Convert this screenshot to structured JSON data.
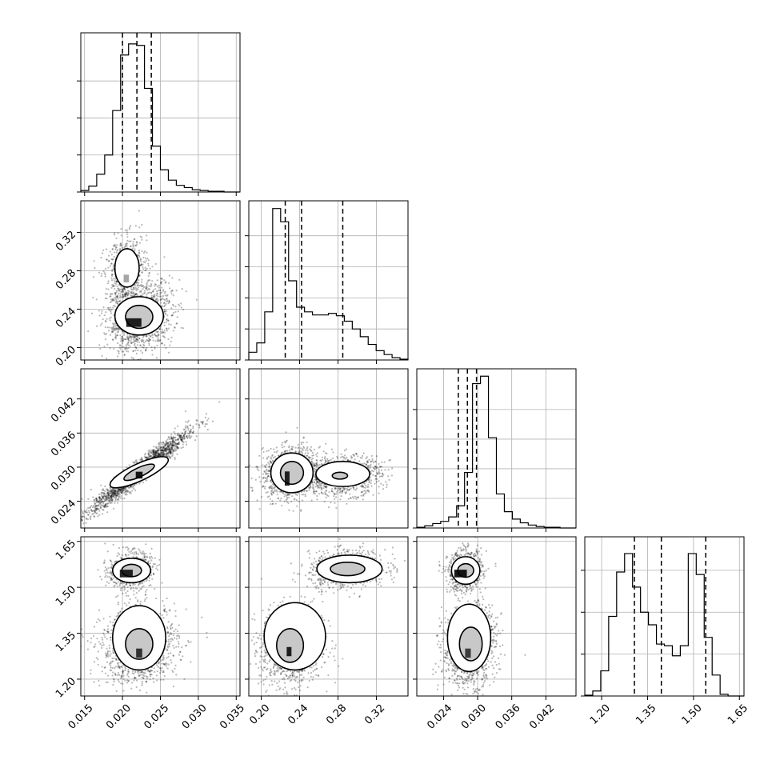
{
  "chart_data": {
    "type": "corner",
    "parameters": [
      {
        "ticks": [
          0.015,
          0.02,
          0.025,
          0.03,
          0.035
        ],
        "tick_labels": [
          "0.015",
          "0.020",
          "0.025",
          "0.030",
          "0.035"
        ],
        "range": [
          0.0145,
          0.0355
        ],
        "quantiles": [
          0.02,
          0.0219,
          0.0238
        ]
      },
      {
        "ticks": [
          0.2,
          0.24,
          0.28,
          0.32
        ],
        "tick_labels": [
          "0.20",
          "0.24",
          "0.28",
          "0.32"
        ],
        "range": [
          0.187,
          0.353
        ],
        "quantiles": [
          0.225,
          0.242,
          0.285
        ]
      },
      {
        "ticks": [
          0.024,
          0.03,
          0.036,
          0.042
        ],
        "tick_labels": [
          "0.024",
          "0.030",
          "0.036",
          "0.042"
        ],
        "range": [
          0.0193,
          0.0473
        ],
        "quantiles": [
          0.0266,
          0.0282,
          0.0298
        ]
      },
      {
        "ticks": [
          1.2,
          1.35,
          1.5,
          1.65
        ],
        "tick_labels": [
          "1.20",
          "1.35",
          "1.50",
          "1.65"
        ],
        "range": [
          1.145,
          1.665
        ],
        "quantiles": [
          1.307,
          1.395,
          1.54
        ]
      }
    ],
    "histograms": [
      {
        "values": [
          2,
          8,
          24,
          50,
          110,
          185,
          200,
          198,
          140,
          62,
          30,
          16,
          9,
          6,
          3,
          2,
          1,
          1,
          0,
          0
        ],
        "ymax": 215,
        "yticks": [
          0,
          50,
          100,
          150
        ]
      },
      {
        "values": [
          10,
          22,
          62,
          195,
          178,
          102,
          68,
          62,
          58,
          58,
          60,
          57,
          50,
          40,
          30,
          20,
          12,
          7,
          3,
          1
        ],
        "ymax": 205,
        "yticks": [
          0,
          40,
          80,
          120,
          160
        ]
      },
      {
        "values": [
          1,
          3,
          6,
          9,
          15,
          30,
          75,
          195,
          205,
          122,
          46,
          22,
          12,
          7,
          4,
          2,
          1,
          1,
          0,
          0
        ],
        "ymax": 215,
        "yticks": [
          0,
          40,
          80,
          120,
          160
        ]
      },
      {
        "values": [
          1,
          6,
          30,
          95,
          148,
          170,
          130,
          100,
          85,
          62,
          60,
          48,
          60,
          170,
          145,
          70,
          25,
          2,
          0,
          0
        ],
        "ymax": 190,
        "yticks": [
          0,
          50,
          100,
          150
        ]
      }
    ],
    "pairs": [
      {
        "x": 0,
        "y": 1,
        "clusters": [
          {
            "cx": 0.0223,
            "cy": 0.231,
            "sx": 0.0021,
            "sy": 0.018,
            "rho": 0.2,
            "n": 1300
          },
          {
            "cx": 0.0205,
            "cy": 0.28,
            "sx": 0.0014,
            "sy": 0.018,
            "rho": 0.2,
            "n": 600
          }
        ],
        "contours": [
          {
            "cx": 0.0222,
            "cy": 0.232,
            "rx": 0.0018,
            "ry": 0.012,
            "rot": 0,
            "style": "grey"
          },
          {
            "cx": 0.0222,
            "cy": 0.233,
            "rx": 0.0032,
            "ry": 0.02,
            "rot": 0,
            "style": "line"
          },
          {
            "cx": 0.0206,
            "cy": 0.283,
            "rx": 0.0016,
            "ry": 0.02,
            "rot": 0,
            "style": "line"
          }
        ],
        "blobs": [
          {
            "x": 0.0205,
            "y": 0.272,
            "w": 0.0007,
            "h": 0.008,
            "o": 0.35
          },
          {
            "x": 0.0215,
            "y": 0.226,
            "w": 0.002,
            "h": 0.009,
            "o": 0.85
          }
        ]
      },
      {
        "x": 0,
        "y": 2,
        "clusters": [
          {
            "cx": 0.0222,
            "cy": 0.0292,
            "sx": 0.0032,
            "sy": 0.0035,
            "rho": 0.96,
            "n": 2000
          }
        ],
        "contours": [
          {
            "cx": 0.0222,
            "cy": 0.0291,
            "rx": 0.0042,
            "ry": 0.0015,
            "rot": 25,
            "style": "line"
          },
          {
            "cx": 0.0222,
            "cy": 0.0291,
            "rx": 0.0022,
            "ry": 0.0008,
            "rot": 25,
            "style": "grey"
          }
        ],
        "blobs": [
          {
            "x": 0.0222,
            "y": 0.0286,
            "w": 0.0009,
            "h": 0.0012,
            "o": 0.9
          }
        ]
      },
      {
        "x": 1,
        "y": 2,
        "clusters": [
          {
            "cx": 0.232,
            "cy": 0.029,
            "sx": 0.015,
            "sy": 0.0022,
            "rho": 0.1,
            "n": 1200
          },
          {
            "cx": 0.285,
            "cy": 0.0285,
            "sx": 0.02,
            "sy": 0.0017,
            "rho": 0.1,
            "n": 900
          }
        ],
        "contours": [
          {
            "cx": 0.232,
            "cy": 0.029,
            "rx": 0.022,
            "ry": 0.0035,
            "rot": 0,
            "style": "line"
          },
          {
            "cx": 0.285,
            "cy": 0.0288,
            "rx": 0.028,
            "ry": 0.0022,
            "rot": 0,
            "style": "line"
          },
          {
            "cx": 0.232,
            "cy": 0.029,
            "rx": 0.012,
            "ry": 0.002,
            "rot": 0,
            "style": "grey"
          },
          {
            "cx": 0.282,
            "cy": 0.0285,
            "rx": 0.008,
            "ry": 0.0006,
            "rot": 0,
            "style": "grey"
          }
        ],
        "blobs": [
          {
            "x": 0.227,
            "y": 0.028,
            "w": 0.005,
            "h": 0.0025,
            "o": 0.85
          }
        ]
      },
      {
        "x": 0,
        "y": 3,
        "clusters": [
          {
            "cx": 0.0222,
            "cy": 1.31,
            "sx": 0.0025,
            "sy": 0.06,
            "rho": 0.1,
            "n": 1300
          },
          {
            "cx": 0.021,
            "cy": 1.555,
            "sx": 0.0014,
            "sy": 0.03,
            "rho": 0.1,
            "n": 700
          }
        ],
        "contours": [
          {
            "cx": 0.0222,
            "cy": 1.335,
            "rx": 0.0035,
            "ry": 0.105,
            "rot": 0,
            "style": "line"
          },
          {
            "cx": 0.0222,
            "cy": 1.315,
            "rx": 0.0018,
            "ry": 0.05,
            "rot": 0,
            "style": "grey"
          },
          {
            "cx": 0.0212,
            "cy": 1.555,
            "rx": 0.0025,
            "ry": 0.04,
            "rot": 0,
            "style": "line"
          },
          {
            "cx": 0.0212,
            "cy": 1.555,
            "rx": 0.0013,
            "ry": 0.02,
            "rot": 0,
            "style": "grey"
          }
        ],
        "blobs": [
          {
            "x": 0.0205,
            "y": 1.545,
            "w": 0.0017,
            "h": 0.025,
            "o": 0.85
          },
          {
            "x": 0.0222,
            "y": 1.285,
            "w": 0.0008,
            "h": 0.03,
            "o": 0.75
          }
        ]
      },
      {
        "x": 1,
        "y": 3,
        "clusters": [
          {
            "cx": 0.232,
            "cy": 1.31,
            "sx": 0.016,
            "sy": 0.065,
            "rho": 0.1,
            "n": 1300
          },
          {
            "cx": 0.29,
            "cy": 1.56,
            "sx": 0.02,
            "sy": 0.03,
            "rho": 0.1,
            "n": 800
          }
        ],
        "contours": [
          {
            "cx": 0.235,
            "cy": 1.34,
            "rx": 0.032,
            "ry": 0.11,
            "rot": 0,
            "style": "line"
          },
          {
            "cx": 0.23,
            "cy": 1.31,
            "rx": 0.014,
            "ry": 0.055,
            "rot": 0,
            "style": "grey"
          },
          {
            "cx": 0.292,
            "cy": 1.56,
            "rx": 0.034,
            "ry": 0.045,
            "rot": 0,
            "style": "line"
          },
          {
            "cx": 0.29,
            "cy": 1.56,
            "rx": 0.018,
            "ry": 0.022,
            "rot": 0,
            "style": "grey"
          }
        ],
        "blobs": [
          {
            "x": 0.229,
            "y": 1.29,
            "w": 0.005,
            "h": 0.03,
            "o": 0.85
          }
        ]
      },
      {
        "x": 2,
        "y": 3,
        "clusters": [
          {
            "cx": 0.0285,
            "cy": 1.31,
            "sx": 0.0023,
            "sy": 0.065,
            "rho": 0.1,
            "n": 1300
          },
          {
            "cx": 0.0278,
            "cy": 1.555,
            "sx": 0.0015,
            "sy": 0.032,
            "rho": 0.1,
            "n": 750
          }
        ],
        "contours": [
          {
            "cx": 0.0285,
            "cy": 1.335,
            "rx": 0.0038,
            "ry": 0.11,
            "rot": 0,
            "style": "line"
          },
          {
            "cx": 0.0288,
            "cy": 1.315,
            "rx": 0.002,
            "ry": 0.055,
            "rot": 0,
            "style": "grey"
          },
          {
            "cx": 0.0279,
            "cy": 1.555,
            "rx": 0.0025,
            "ry": 0.045,
            "rot": 0,
            "style": "line"
          },
          {
            "cx": 0.0279,
            "cy": 1.555,
            "rx": 0.0014,
            "ry": 0.022,
            "rot": 0,
            "style": "grey"
          }
        ],
        "blobs": [
          {
            "x": 0.027,
            "y": 1.545,
            "w": 0.0022,
            "h": 0.025,
            "o": 0.9
          },
          {
            "x": 0.0283,
            "y": 1.285,
            "w": 0.001,
            "h": 0.03,
            "o": 0.7
          }
        ]
      }
    ],
    "grid": true
  }
}
